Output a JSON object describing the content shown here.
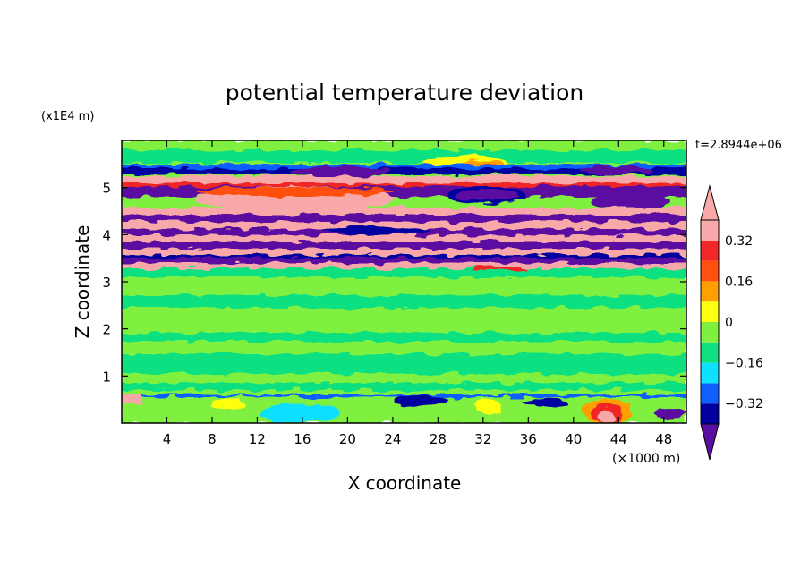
{
  "chart_data": {
    "type": "heatmap",
    "title": "potential temperature deviation",
    "xlabel": "X coordinate",
    "ylabel": "Z coordinate",
    "x_unit": "(×1000 m)",
    "y_unit": "(x1E4 m)",
    "time_label": "t=2.8944e+06",
    "xlim": [
      0,
      50
    ],
    "ylim": [
      0,
      6
    ],
    "x_ticks": [
      4,
      8,
      12,
      16,
      20,
      24,
      28,
      32,
      36,
      40,
      44,
      48
    ],
    "y_ticks": [
      1,
      2,
      3,
      4,
      5
    ],
    "grid": false,
    "colorbar": {
      "levels": [
        -0.4,
        -0.32,
        -0.24,
        -0.16,
        -0.08,
        0,
        0.08,
        0.16,
        0.24,
        0.32,
        0.4
      ],
      "labels": [
        "0.32",
        "0.16",
        "0",
        "−0.16",
        "−0.32"
      ],
      "label_values": [
        0.32,
        0.16,
        0,
        -0.16,
        -0.32
      ],
      "colors": [
        "#5a0fa0",
        "#0000a0",
        "#1060ff",
        "#10e0ff",
        "#10e080",
        "#80f040",
        "#ffff10",
        "#ffa000",
        "#ff5010",
        "#f02828",
        "#f8a8a8"
      ],
      "extend": "both"
    }
  }
}
